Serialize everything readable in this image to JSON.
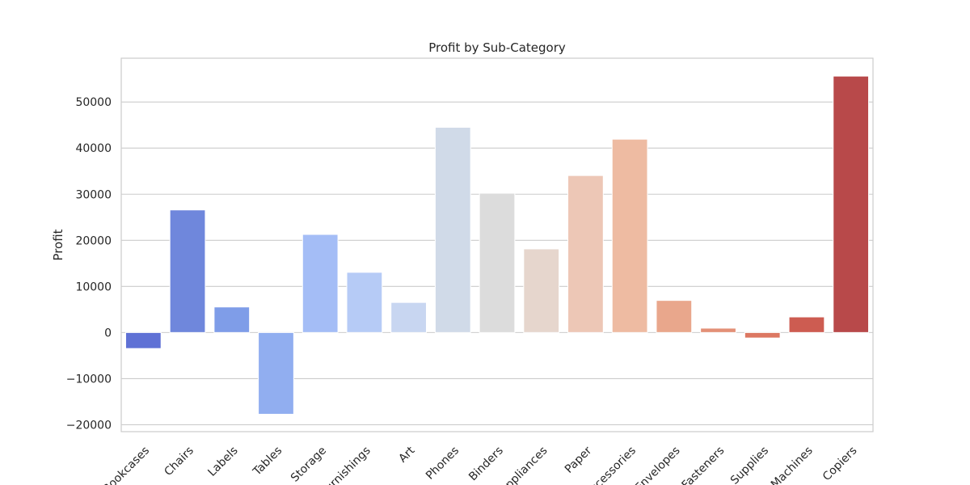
{
  "chart_data": {
    "type": "bar",
    "title": "Profit by Sub-Category",
    "xlabel": "",
    "ylabel": "Profit",
    "ylim": [
      -21500,
      59500
    ],
    "yticks": [
      -20000,
      -10000,
      0,
      10000,
      20000,
      30000,
      40000,
      50000
    ],
    "ytick_labels": [
      "−20000",
      "−10000",
      "0",
      "10000",
      "20000",
      "30000",
      "40000",
      "50000"
    ],
    "grid": true,
    "categories": [
      "Bookcases",
      "Chairs",
      "Labels",
      "Tables",
      "Storage",
      "Furnishings",
      "Art",
      "Phones",
      "Binders",
      "Appliances",
      "Paper",
      "Accessories",
      "Envelopes",
      "Fasteners",
      "Supplies",
      "Machines",
      "Copiers"
    ],
    "values": [
      -3473,
      26590,
      5546,
      -17725,
      21279,
      13059,
      6528,
      44516,
      30222,
      18138,
      34054,
      41937,
      6964,
      950,
      -1189,
      3385,
      55618
    ],
    "colors": [
      "#5f71d5",
      "#6f87dc",
      "#7f9de8",
      "#91aef0",
      "#a4bdf6",
      "#b6cbf6",
      "#c8d6f1",
      "#d0dae8",
      "#dcdcdc",
      "#e6d6cd",
      "#edc7b6",
      "#eebba2",
      "#e9a78c",
      "#e39077",
      "#dc7862",
      "#cd5c51",
      "#b8494a"
    ]
  }
}
